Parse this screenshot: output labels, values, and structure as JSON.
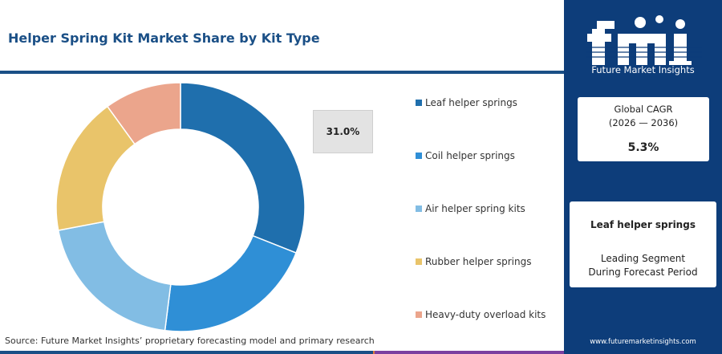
{
  "title": "Helper Spring Kit Market Share by Kit Type",
  "highlight_label": "31.0%",
  "source": "Source: Future Market Insights’ proprietary forecasting model and primary research",
  "logo": {
    "text": "fmi",
    "tagline": "Future Market Insights",
    "icon": "fmi-logo"
  },
  "cagr": {
    "label_line1": "Global CAGR",
    "label_line2": "(2026 — 2036)",
    "value": "5.3%"
  },
  "leading_segment": {
    "name": "Leaf helper springs",
    "caption_line1": "Leading Segment",
    "caption_line2": "During Forecast Period"
  },
  "website": "www.futuremarketinsights.com",
  "colors": {
    "brand_dark": "#0d3d7a",
    "title": "#1a4f86",
    "bottom_bar": [
      "#1a4f86",
      "#e07b39",
      "#7b3fa0"
    ]
  },
  "chart_data": {
    "type": "pie",
    "donut": true,
    "categories": [
      "Leaf helper springs",
      "Coil helper springs",
      "Air helper spring kits",
      "Rubber helper springs",
      "Heavy-duty overload kits"
    ],
    "values": [
      31.0,
      21.0,
      20.0,
      18.0,
      10.0
    ],
    "colors": [
      "#1f6fad",
      "#2f8fd6",
      "#82bde4",
      "#e9c46a",
      "#eba58c"
    ],
    "legend_position": "right",
    "annotated_value": 31.0
  }
}
